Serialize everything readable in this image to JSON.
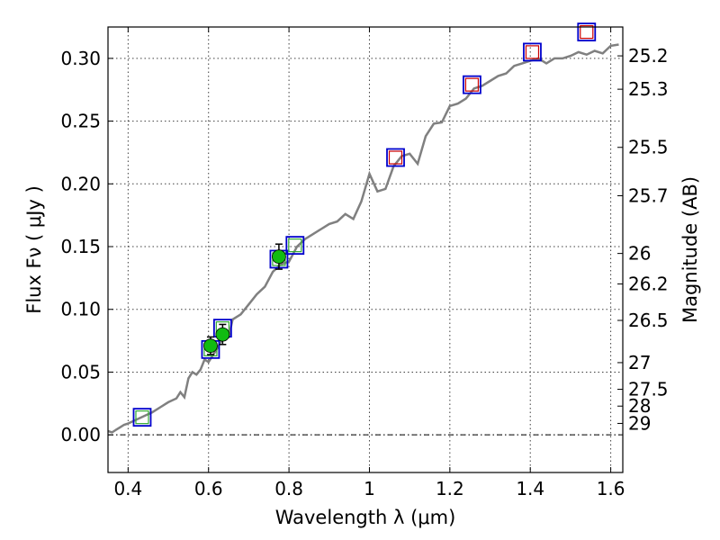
{
  "chart_data": {
    "type": "scatter",
    "title": "",
    "xlabel": "Wavelength  λ (μm)",
    "ylabel": "Flux  Fν  ( μJy )",
    "y2label": "Magnitude (AB)",
    "xlim": [
      0.35,
      1.63
    ],
    "ylim": [
      -0.03,
      0.325
    ],
    "grid": true,
    "legend": "none",
    "x_ticks": [
      {
        "value": 0.4,
        "label": "0.4"
      },
      {
        "value": 0.6,
        "label": "0.6"
      },
      {
        "value": 0.8,
        "label": "0.8"
      },
      {
        "value": 1.0,
        "label": "1"
      },
      {
        "value": 1.2,
        "label": "1.2"
      },
      {
        "value": 1.4,
        "label": "1.4"
      },
      {
        "value": 1.6,
        "label": "1.6"
      }
    ],
    "y_ticks": [
      {
        "value": 0.0,
        "label": "0.00"
      },
      {
        "value": 0.05,
        "label": "0.05"
      },
      {
        "value": 0.1,
        "label": "0.10"
      },
      {
        "value": 0.15,
        "label": "0.15"
      },
      {
        "value": 0.2,
        "label": "0.20"
      },
      {
        "value": 0.25,
        "label": "0.25"
      },
      {
        "value": 0.3,
        "label": "0.30"
      }
    ],
    "mag_ticks": [
      {
        "value": 25.2,
        "label": "25.2"
      },
      {
        "value": 25.3,
        "label": "25.3"
      },
      {
        "value": 25.5,
        "label": "25.5"
      },
      {
        "value": 25.7,
        "label": "25.7"
      },
      {
        "value": 26.0,
        "label": "26"
      },
      {
        "value": 26.2,
        "label": "26.2"
      },
      {
        "value": 26.5,
        "label": "26.5"
      },
      {
        "value": 27.0,
        "label": "27"
      },
      {
        "value": 27.5,
        "label": "27.5"
      },
      {
        "value": 28.0,
        "label": "28"
      },
      {
        "value": 29.0,
        "label": "29"
      }
    ],
    "zero_line": 0.0,
    "series": [
      {
        "kind": "line",
        "color": "#808080",
        "x": [
          0.35,
          0.36,
          0.37,
          0.38,
          0.39,
          0.4,
          0.42,
          0.44,
          0.46,
          0.48,
          0.5,
          0.52,
          0.53,
          0.54,
          0.55,
          0.56,
          0.57,
          0.58,
          0.59,
          0.6,
          0.62,
          0.64,
          0.65,
          0.66,
          0.68,
          0.7,
          0.72,
          0.74,
          0.76,
          0.78,
          0.8,
          0.82,
          0.84,
          0.86,
          0.88,
          0.9,
          0.92,
          0.94,
          0.96,
          0.98,
          1.0,
          1.02,
          1.04,
          1.06,
          1.08,
          1.1,
          1.12,
          1.14,
          1.16,
          1.18,
          1.2,
          1.22,
          1.24,
          1.26,
          1.28,
          1.3,
          1.32,
          1.34,
          1.36,
          1.38,
          1.4,
          1.42,
          1.44,
          1.46,
          1.48,
          1.5,
          1.52,
          1.54,
          1.56,
          1.58,
          1.6,
          1.62
        ],
        "y": [
          0.003,
          0.002,
          0.004,
          0.006,
          0.008,
          0.009,
          0.012,
          0.015,
          0.018,
          0.022,
          0.026,
          0.029,
          0.034,
          0.03,
          0.045,
          0.05,
          0.048,
          0.052,
          0.06,
          0.058,
          0.068,
          0.08,
          0.078,
          0.092,
          0.096,
          0.104,
          0.112,
          0.118,
          0.13,
          0.136,
          0.138,
          0.15,
          0.156,
          0.16,
          0.164,
          0.168,
          0.17,
          0.176,
          0.172,
          0.186,
          0.208,
          0.194,
          0.196,
          0.214,
          0.222,
          0.224,
          0.216,
          0.238,
          0.248,
          0.249,
          0.262,
          0.264,
          0.268,
          0.276,
          0.278,
          0.282,
          0.286,
          0.288,
          0.294,
          0.296,
          0.298,
          0.3,
          0.296,
          0.3,
          0.3,
          0.302,
          0.305,
          0.303,
          0.306,
          0.304,
          0.31,
          0.311
        ]
      },
      {
        "kind": "model-squares",
        "edge_color": "#0000cc",
        "x": [
          0.435,
          0.605,
          0.635,
          0.775,
          0.815,
          1.065,
          1.255,
          1.405,
          1.54
        ],
        "y": [
          0.014,
          0.068,
          0.085,
          0.14,
          0.151,
          0.221,
          0.279,
          0.305,
          0.321
        ],
        "inner_color": [
          "#33aa33",
          "#33aa33",
          "#33aa33",
          "#33aa33",
          "#33aa33",
          "#cc0000",
          "#cc0000",
          "#cc0000",
          "#cc0000"
        ]
      },
      {
        "kind": "observed",
        "color": "#11bb11",
        "x": [
          0.605,
          0.635,
          0.775
        ],
        "y": [
          0.071,
          0.08,
          0.142
        ],
        "yerr": [
          0.007,
          0.008,
          0.01
        ]
      }
    ]
  }
}
